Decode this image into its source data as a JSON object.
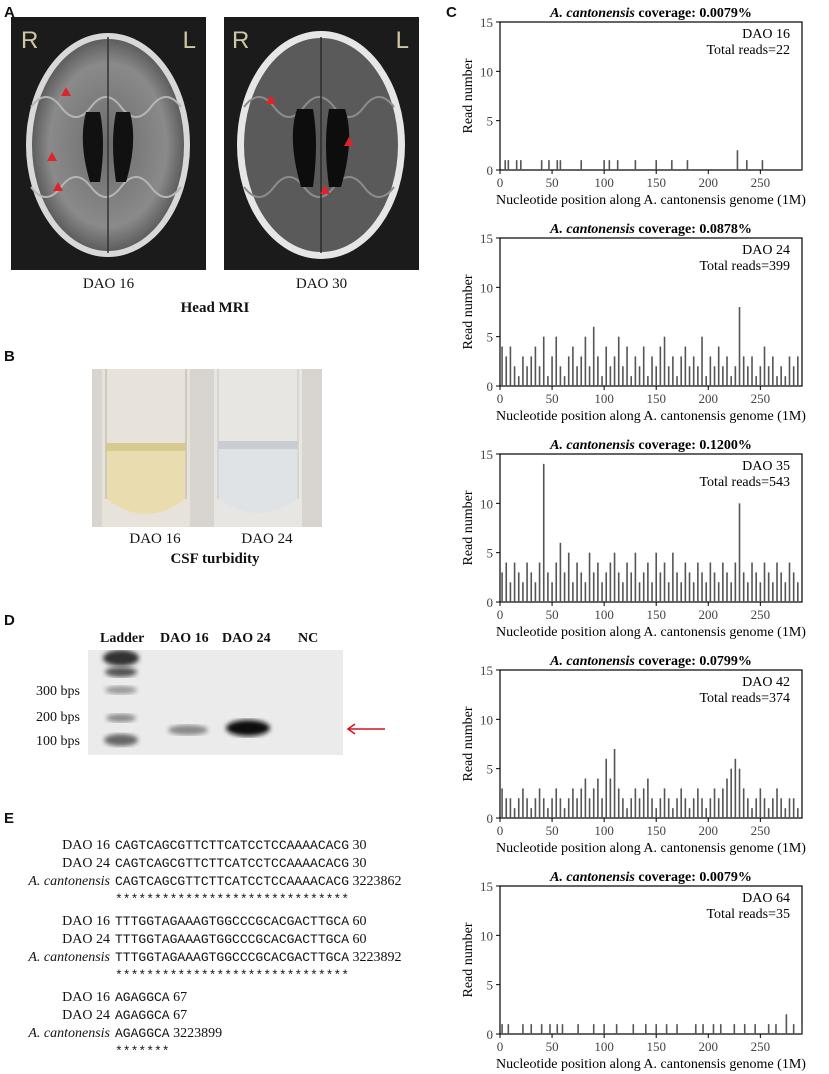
{
  "panels": {
    "A": {
      "letter": "A",
      "mri_left": {
        "side_r": "R",
        "side_l": "L",
        "caption": "DAO 16"
      },
      "mri_right": {
        "side_r": "R",
        "side_l": "L",
        "caption": "DAO 30"
      },
      "title": "Head MRI"
    },
    "B": {
      "letter": "B",
      "tube_left_caption": "DAO 16",
      "tube_right_caption": "DAO 24",
      "title": "CSF turbidity"
    },
    "C": {
      "letter": "C"
    },
    "D": {
      "letter": "D",
      "lanes": [
        "Ladder",
        "DAO 16",
        "DAO 24",
        "NC"
      ],
      "markers": [
        "300 bps",
        "200 bps",
        "100 bps"
      ]
    },
    "E": {
      "letter": "E",
      "blocks": [
        {
          "rows": [
            {
              "label": "DAO 16",
              "seq": "CAGTCAGCGTTCTTCATCCTCCAAAACACG",
              "pos": "30"
            },
            {
              "label": "DAO 24",
              "seq": "CAGTCAGCGTTCTTCATCCTCCAAAACACG",
              "pos": "30"
            },
            {
              "label": "A. cantonensis",
              "seq": "CAGTCAGCGTTCTTCATCCTCCAAAACACG",
              "pos": "3223862"
            }
          ],
          "stars": "******************************"
        },
        {
          "rows": [
            {
              "label": "DAO 16",
              "seq": "TTTGGTAGAAAGTGGCCCGCACGACTTGCA",
              "pos": "60"
            },
            {
              "label": "DAO 24",
              "seq": "TTTGGTAGAAAGTGGCCCGCACGACTTGCA",
              "pos": "60"
            },
            {
              "label": "A. cantonensis",
              "seq": "TTTGGTAGAAAGTGGCCCGCACGACTTGCA",
              "pos": "3223892"
            }
          ],
          "stars": "******************************"
        },
        {
          "rows": [
            {
              "label": "DAO 16",
              "seq": "AGAGGCA",
              "pos": "67"
            },
            {
              "label": "DAO 24",
              "seq": "AGAGGCA",
              "pos": "67"
            },
            {
              "label": "A. cantonensis",
              "seq": "AGAGGCA",
              "pos": "3223899"
            }
          ],
          "stars": "*******"
        }
      ]
    }
  },
  "chart_data": [
    {
      "type": "bar",
      "title_species": "A. cantonensis",
      "title_rest": "coverage: 0.0079%",
      "sample": "DAO 16",
      "total": "Total reads=22",
      "xlabel": "Nucleotide position along A. cantonensis genome (1M)",
      "ylabel": "Read number",
      "xlim": [
        0,
        290
      ],
      "ylim": [
        0,
        15
      ],
      "xticks": [
        0,
        50,
        100,
        150,
        200,
        250
      ],
      "yticks": [
        0,
        5,
        10,
        15
      ],
      "x": [
        5,
        8,
        16,
        20,
        40,
        47,
        55,
        58,
        78,
        100,
        105,
        113,
        130,
        150,
        165,
        180,
        228,
        237,
        252,
        290
      ],
      "values": [
        1,
        1,
        1,
        1,
        1,
        1,
        1,
        1,
        1,
        1,
        1,
        1,
        1,
        1,
        1,
        1,
        2,
        1,
        1,
        1
      ]
    },
    {
      "type": "bar",
      "title_species": "A. cantonensis",
      "title_rest": "coverage: 0.0878%",
      "sample": "DAO 24",
      "total": "Total reads=399",
      "xlabel": "Nucleotide position along A. cantonensis genome (1M)",
      "ylabel": "Read number",
      "xlim": [
        0,
        290
      ],
      "ylim": [
        0,
        15
      ],
      "xticks": [
        0,
        50,
        100,
        150,
        200,
        250
      ],
      "yticks": [
        0,
        5,
        10,
        15
      ],
      "x": [
        2,
        6,
        10,
        14,
        18,
        22,
        26,
        30,
        34,
        38,
        42,
        46,
        50,
        54,
        58,
        62,
        66,
        70,
        74,
        78,
        82,
        86,
        90,
        94,
        98,
        102,
        106,
        110,
        114,
        118,
        122,
        126,
        130,
        134,
        138,
        142,
        146,
        150,
        154,
        158,
        162,
        166,
        170,
        174,
        178,
        182,
        186,
        190,
        194,
        198,
        202,
        206,
        210,
        214,
        218,
        222,
        226,
        230,
        234,
        238,
        242,
        246,
        250,
        254,
        258,
        262,
        266,
        270,
        274,
        278,
        282,
        286
      ],
      "values": [
        4,
        3,
        4,
        2,
        1,
        3,
        2,
        3,
        4,
        2,
        5,
        1,
        3,
        5,
        2,
        1,
        3,
        4,
        2,
        3,
        5,
        2,
        6,
        3,
        1,
        4,
        2,
        3,
        5,
        2,
        4,
        1,
        3,
        2,
        4,
        1,
        3,
        2,
        4,
        5,
        2,
        3,
        1,
        3,
        4,
        2,
        3,
        2,
        5,
        1,
        3,
        2,
        4,
        2,
        3,
        1,
        2,
        8,
        3,
        2,
        3,
        1,
        2,
        4,
        2,
        3,
        1,
        2,
        1,
        3,
        2,
        3
      ]
    },
    {
      "type": "bar",
      "title_species": "A. cantonensis",
      "title_rest": "coverage: 0.1200%",
      "sample": "DAO 35",
      "total": "Total reads=543",
      "xlabel": "Nucleotide position along A. cantonensis genome (1M)",
      "ylabel": "Read number",
      "xlim": [
        0,
        290
      ],
      "ylim": [
        0,
        15
      ],
      "xticks": [
        0,
        50,
        100,
        150,
        200,
        250
      ],
      "yticks": [
        0,
        5,
        10,
        15
      ],
      "x": [
        2,
        6,
        10,
        14,
        18,
        22,
        26,
        30,
        34,
        38,
        42,
        46,
        50,
        54,
        58,
        62,
        66,
        70,
        74,
        78,
        82,
        86,
        90,
        94,
        98,
        102,
        106,
        110,
        114,
        118,
        122,
        126,
        130,
        134,
        138,
        142,
        146,
        150,
        154,
        158,
        162,
        166,
        170,
        174,
        178,
        182,
        186,
        190,
        194,
        198,
        202,
        206,
        210,
        214,
        218,
        222,
        226,
        230,
        234,
        238,
        242,
        246,
        250,
        254,
        258,
        262,
        266,
        270,
        274,
        278,
        282,
        286
      ],
      "values": [
        3,
        4,
        2,
        4,
        3,
        2,
        4,
        3,
        2,
        4,
        14,
        3,
        2,
        4,
        6,
        3,
        5,
        2,
        4,
        3,
        2,
        5,
        3,
        4,
        2,
        3,
        4,
        5,
        3,
        2,
        4,
        3,
        5,
        2,
        3,
        4,
        2,
        5,
        3,
        4,
        2,
        5,
        3,
        2,
        4,
        3,
        2,
        4,
        3,
        2,
        4,
        3,
        2,
        4,
        3,
        2,
        4,
        10,
        3,
        2,
        4,
        3,
        2,
        4,
        3,
        2,
        4,
        3,
        2,
        4,
        3,
        2
      ]
    },
    {
      "type": "bar",
      "title_species": "A. cantonensis",
      "title_rest": "coverage: 0.0799%",
      "sample": "DAO 42",
      "total": "Total reads=374",
      "xlabel": "Nucleotide position along A. cantonensis genome (1M)",
      "ylabel": "Read number",
      "xlim": [
        0,
        290
      ],
      "ylim": [
        0,
        15
      ],
      "xticks": [
        0,
        50,
        100,
        150,
        200,
        250
      ],
      "yticks": [
        0,
        5,
        10,
        15
      ],
      "x": [
        2,
        6,
        10,
        14,
        18,
        22,
        26,
        30,
        34,
        38,
        42,
        46,
        50,
        54,
        58,
        62,
        66,
        70,
        74,
        78,
        82,
        86,
        90,
        94,
        98,
        102,
        106,
        110,
        114,
        118,
        122,
        126,
        130,
        134,
        138,
        142,
        146,
        150,
        154,
        158,
        162,
        166,
        170,
        174,
        178,
        182,
        186,
        190,
        194,
        198,
        202,
        206,
        210,
        214,
        218,
        222,
        226,
        230,
        234,
        238,
        242,
        246,
        250,
        254,
        258,
        262,
        266,
        270,
        274,
        278,
        282,
        286
      ],
      "values": [
        3,
        2,
        2,
        1,
        2,
        3,
        2,
        1,
        2,
        3,
        2,
        1,
        2,
        3,
        2,
        1,
        2,
        3,
        2,
        3,
        4,
        2,
        3,
        4,
        2,
        6,
        4,
        7,
        3,
        2,
        1,
        2,
        3,
        2,
        3,
        4,
        2,
        1,
        2,
        3,
        2,
        1,
        2,
        3,
        2,
        1,
        2,
        3,
        2,
        1,
        2,
        3,
        2,
        3,
        4,
        5,
        6,
        5,
        3,
        2,
        1,
        2,
        3,
        2,
        1,
        2,
        3,
        2,
        1,
        2,
        2,
        1
      ]
    },
    {
      "type": "bar",
      "title_species": "A. cantonensis",
      "title_rest": "coverage: 0.0079%",
      "sample": "DAO 64",
      "total": "Total reads=35",
      "xlabel": "Nucleotide position along A. cantonensis genome (1M)",
      "ylabel": "Read number",
      "xlim": [
        0,
        290
      ],
      "ylim": [
        0,
        15
      ],
      "xticks": [
        0,
        50,
        100,
        150,
        200,
        250
      ],
      "yticks": [
        0,
        5,
        10,
        15
      ],
      "x": [
        2,
        8,
        22,
        30,
        40,
        48,
        55,
        60,
        75,
        90,
        100,
        112,
        128,
        140,
        150,
        160,
        170,
        188,
        195,
        205,
        212,
        225,
        235,
        245,
        258,
        265,
        275,
        282,
        290
      ],
      "values": [
        1,
        1,
        1,
        1,
        1,
        1,
        1,
        1,
        1,
        1,
        1,
        1,
        1,
        1,
        1,
        1,
        1,
        1,
        1,
        1,
        1,
        1,
        1,
        1,
        1,
        1,
        2,
        1,
        1
      ]
    }
  ]
}
